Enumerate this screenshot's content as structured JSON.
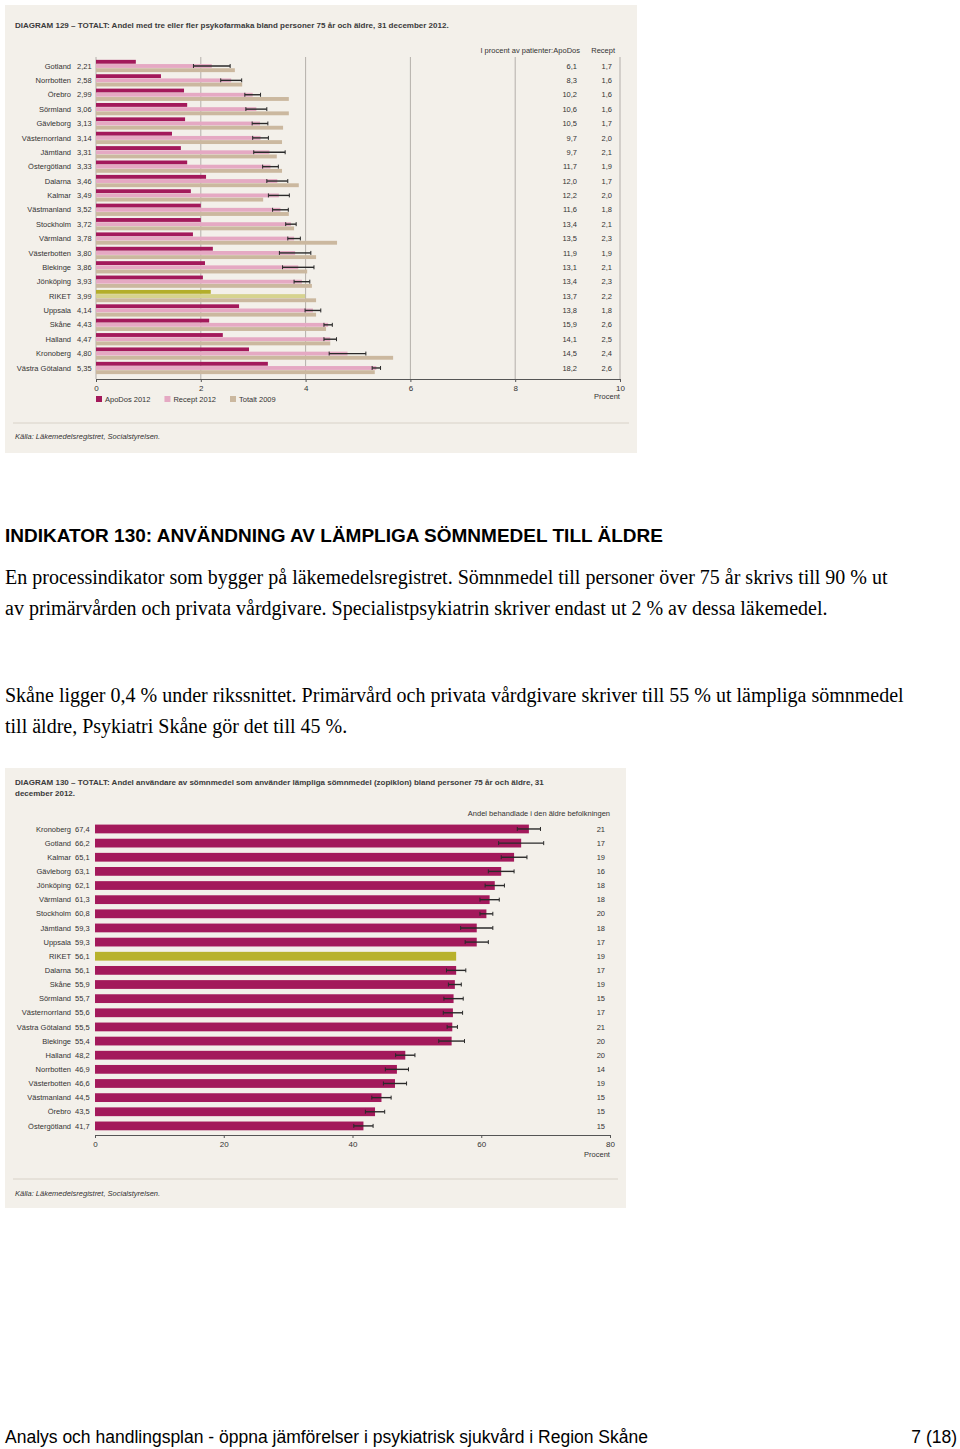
{
  "chart_data": [
    {
      "type": "bar",
      "orientation": "horizontal",
      "title": "DIAGRAM 129 – TOTALT: Andel med tre eller fler psykofarmaka bland personer 75 år och äldre, 31 december 2012.",
      "xlabel": "Procent",
      "source": "Källa: Läkemedelsregistret, Socialstyrelsen.",
      "legend": "bottom-left",
      "grid": true,
      "xlim": [
        0,
        10
      ],
      "xticks": [
        0,
        2,
        4,
        6,
        8,
        10
      ],
      "categories": [
        "Gotland",
        "Norrbotten",
        "Örebro",
        "Sörmland",
        "Gävleborg",
        "Västernorrland",
        "Jämtland",
        "Östergötland",
        "Dalarna",
        "Kalmar",
        "Västmanland",
        "Stockholm",
        "Värmland",
        "Västerbotten",
        "Blekinge",
        "Jönköping",
        "RIKET",
        "Uppsala",
        "Skåne",
        "Halland",
        "Kronoberg",
        "Västra Götaland"
      ],
      "series": [
        {
          "name": "ApoDos 2012",
          "color": "#a3195b",
          "colors": [
            "#a3195b",
            "#a3195b",
            "#a3195b",
            "#a3195b",
            "#a3195b",
            "#a3195b",
            "#a3195b",
            "#a3195b",
            "#a3195b",
            "#a3195b",
            "#a3195b",
            "#a3195b",
            "#a3195b",
            "#a3195b",
            "#a3195b",
            "#a3195b",
            "#b3ae2b",
            "#a3195b",
            "#a3195b",
            "#a3195b",
            "#a3195b",
            "#a3195b"
          ],
          "values": [
            0.76,
            1.24,
            1.68,
            1.74,
            1.7,
            1.45,
            1.62,
            1.74,
            2.1,
            1.81,
            2.0,
            2.0,
            1.85,
            2.23,
            2.08,
            2.04,
            2.19,
            2.73,
            2.16,
            2.42,
            2.92,
            3.28
          ]
        },
        {
          "name": "Recept 2012",
          "color": "#e5a9c3",
          "colors": [
            "#e5a9c3",
            "#e5a9c3",
            "#e5a9c3",
            "#e5a9c3",
            "#e5a9c3",
            "#e5a9c3",
            "#e5a9c3",
            "#e5a9c3",
            "#e5a9c3",
            "#e5a9c3",
            "#e5a9c3",
            "#e5a9c3",
            "#e5a9c3",
            "#e5a9c3",
            "#e5a9c3",
            "#e5a9c3",
            "#d6d38f",
            "#e5a9c3",
            "#e5a9c3",
            "#e5a9c3",
            "#e5a9c3",
            "#e5a9c3"
          ],
          "values": [
            2.21,
            2.58,
            2.99,
            3.06,
            3.13,
            3.14,
            3.31,
            3.33,
            3.46,
            3.49,
            3.52,
            3.72,
            3.78,
            3.8,
            3.86,
            3.93,
            3.99,
            4.14,
            4.43,
            4.47,
            4.8,
            5.35
          ],
          "value_labels": [
            "2,21",
            "2,58",
            "2,99",
            "3,06",
            "3,13",
            "3,14",
            "3,31",
            "3,33",
            "3,46",
            "3,49",
            "3,52",
            "3,72",
            "3,78",
            "3,80",
            "3,86",
            "3,93",
            "3,99",
            "4,14",
            "4,43",
            "4,47",
            "4,80",
            "5,35"
          ],
          "errors": [
            0.35,
            0.2,
            0.15,
            0.2,
            0.15,
            0.15,
            0.3,
            0.15,
            0.2,
            0.2,
            0.15,
            0.1,
            0.12,
            0.3,
            0.3,
            0.15,
            null,
            0.15,
            0.08,
            0.12,
            0.35,
            0.08
          ]
        },
        {
          "name": "Totalt 2009",
          "color": "#cbb89f",
          "values": [
            2.65,
            2.79,
            3.68,
            3.68,
            3.57,
            3.55,
            3.45,
            3.55,
            3.87,
            3.19,
            3.68,
            3.78,
            4.6,
            4.2,
            4.03,
            4.12,
            4.2,
            4.2,
            4.39,
            4.47,
            5.67,
            5.32
          ]
        }
      ],
      "side_table": {
        "title": "I procent av patienter:",
        "columns": [
          "ApoDos",
          "Recept"
        ],
        "rows": [
          [
            "6,1",
            "1,7"
          ],
          [
            "8,3",
            "1,6"
          ],
          [
            "10,2",
            "1,6"
          ],
          [
            "10,6",
            "1,6"
          ],
          [
            "10,5",
            "1,7"
          ],
          [
            "9,7",
            "2,0"
          ],
          [
            "9,7",
            "2,1"
          ],
          [
            "11,7",
            "1,9"
          ],
          [
            "12,0",
            "1,7"
          ],
          [
            "12,2",
            "2,0"
          ],
          [
            "11,6",
            "1,8"
          ],
          [
            "13,4",
            "2,1"
          ],
          [
            "13,5",
            "2,3"
          ],
          [
            "11,9",
            "1,9"
          ],
          [
            "13,1",
            "2,1"
          ],
          [
            "13,4",
            "2,3"
          ],
          [
            "13,7",
            "2,2"
          ],
          [
            "13,8",
            "1,8"
          ],
          [
            "15,9",
            "2,6"
          ],
          [
            "14,1",
            "2,5"
          ],
          [
            "14,5",
            "2,4"
          ],
          [
            "18,2",
            "2,6"
          ]
        ]
      }
    },
    {
      "type": "bar",
      "orientation": "horizontal",
      "title": "DIAGRAM 130 – TOTALT: Andel användare av sömnmedel som använder lämpliga sömnmedel (zopiklon) bland personer 75 år och äldre, 31 december 2012.",
      "xlabel": "Procent",
      "source": "Källa: Läkemedelsregistret, Socialstyrelsen.",
      "grid": false,
      "xlim": [
        0,
        80
      ],
      "xticks": [
        0,
        20,
        40,
        60,
        80
      ],
      "categories": [
        "Kronoberg",
        "Gotland",
        "Kalmar",
        "Gävleborg",
        "Jönköping",
        "Värmland",
        "Stockholm",
        "Jämtland",
        "Uppsala",
        "RIKET",
        "Dalarna",
        "Skåne",
        "Sörmland",
        "Västernorrland",
        "Västra Götaland",
        "Blekinge",
        "Halland",
        "Norrbotten",
        "Västerbotten",
        "Västmanland",
        "Örebro",
        "Östergötland"
      ],
      "series": [
        {
          "name": "Andel",
          "color": "#a3195b",
          "colors": [
            "#a3195b",
            "#a3195b",
            "#a3195b",
            "#a3195b",
            "#a3195b",
            "#a3195b",
            "#a3195b",
            "#a3195b",
            "#a3195b",
            "#b8b22c",
            "#a3195b",
            "#a3195b",
            "#a3195b",
            "#a3195b",
            "#a3195b",
            "#a3195b",
            "#a3195b",
            "#a3195b",
            "#a3195b",
            "#a3195b",
            "#a3195b",
            "#a3195b"
          ],
          "values": [
            67.4,
            66.2,
            65.1,
            63.1,
            62.1,
            61.3,
            60.8,
            59.3,
            59.3,
            56.1,
            56.1,
            55.9,
            55.7,
            55.6,
            55.5,
            55.4,
            48.2,
            46.9,
            46.6,
            44.5,
            43.5,
            41.7
          ],
          "value_labels": [
            "67,4",
            "66,2",
            "65,1",
            "63,1",
            "62,1",
            "61,3",
            "60,8",
            "59,3",
            "59,3",
            "56,1",
            "56,1",
            "55,9",
            "55,7",
            "55,6",
            "55,5",
            "55,4",
            "48,2",
            "46,9",
            "46,6",
            "44,5",
            "43,5",
            "41,7"
          ],
          "errors": [
            1.8,
            3.5,
            2,
            2,
            1.5,
            1.5,
            1,
            2.5,
            1.8,
            null,
            1.5,
            1,
            1.5,
            1.5,
            0.8,
            2,
            1.5,
            1.8,
            1.8,
            1.5,
            1.5,
            1.5
          ]
        }
      ],
      "side_column": {
        "title": "Andel behandlade i den äldre befolkningen",
        "values": [
          21,
          17,
          19,
          16,
          18,
          18,
          20,
          18,
          17,
          19,
          17,
          19,
          15,
          17,
          21,
          20,
          20,
          14,
          19,
          15,
          15,
          15
        ]
      }
    }
  ],
  "document": {
    "heading": "INDIKATOR 130: ANVÄNDNING AV LÄMPLIGA SÖMNMEDEL TILL ÄLDRE",
    "paragraphs": [
      "En processindikator som bygger på läkemedelsregistret. Sömnmedel till personer över 75 år skrivs till 90 % ut av primärvården och privata vårdgivare. Specialistpsykiatrin skriver endast ut 2 % av dessa läkemedel.",
      "Skåne ligger 0,4 % under rikssnittet. Primärvård och privata vårdgivare skriver till 55 % ut lämpliga sömnmedel till äldre, Psykiatri Skåne gör det till 45 %."
    ],
    "footer": {
      "left": "Analys och handlingsplan - öppna jämförelser i psykiatrisk sjukvård i Region Skåne",
      "right": "7 (18)"
    }
  }
}
